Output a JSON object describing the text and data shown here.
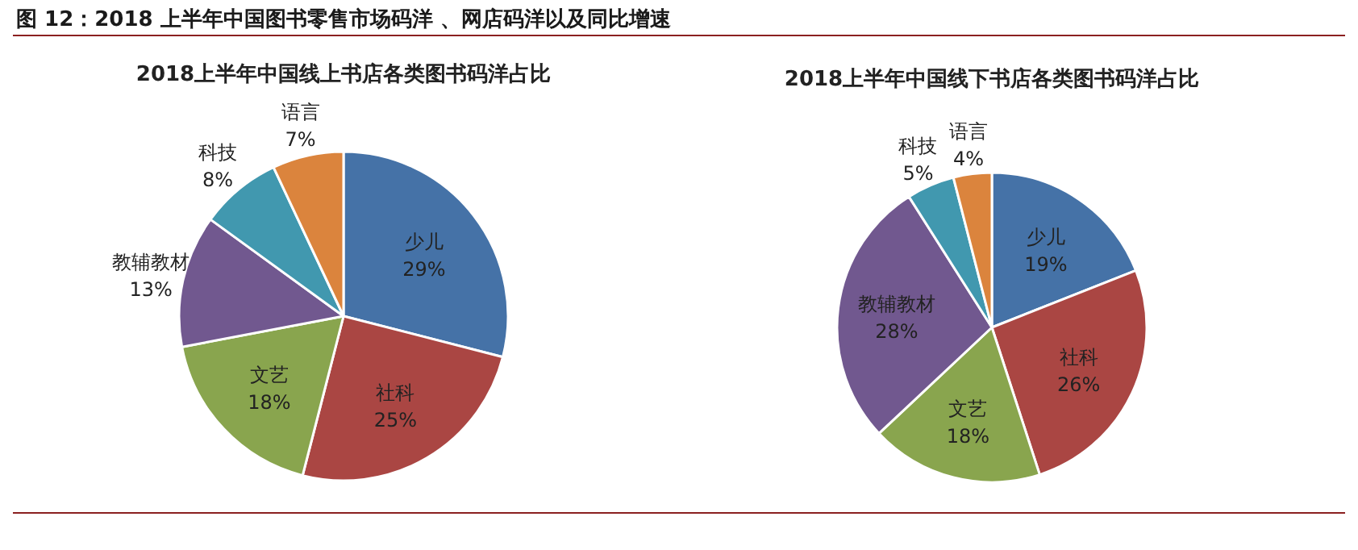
{
  "chart_data": [
    {
      "type": "pie",
      "title": "2018上半年中国线上书店各类图书码洋占比",
      "annotations": [
        "图 12：2018 上半年中国图书零售市场码洋 、网店码洋以及同比增速"
      ],
      "categories": [
        "少儿",
        "社科",
        "文艺",
        "教辅教材",
        "科技",
        "语言"
      ],
      "values": [
        29,
        25,
        18,
        13,
        8,
        7
      ],
      "value_labels": [
        "29%",
        "25%",
        "18%",
        "13%",
        "8%",
        "7%"
      ],
      "colors": [
        "#4572a7",
        "#aa4643",
        "#89a54e",
        "#71588f",
        "#4198af",
        "#db843d"
      ]
    },
    {
      "type": "pie",
      "title": "2018上半年中国线下书店各类图书码洋占比",
      "categories": [
        "少儿",
        "社科",
        "文艺",
        "教辅教材",
        "科技",
        "语言"
      ],
      "values": [
        19,
        26,
        18,
        28,
        5,
        4
      ],
      "value_labels": [
        "19%",
        "26%",
        "18%",
        "28%",
        "5%",
        "4%"
      ],
      "colors": [
        "#4572a7",
        "#aa4643",
        "#89a54e",
        "#71588f",
        "#4198af",
        "#db843d"
      ]
    }
  ]
}
